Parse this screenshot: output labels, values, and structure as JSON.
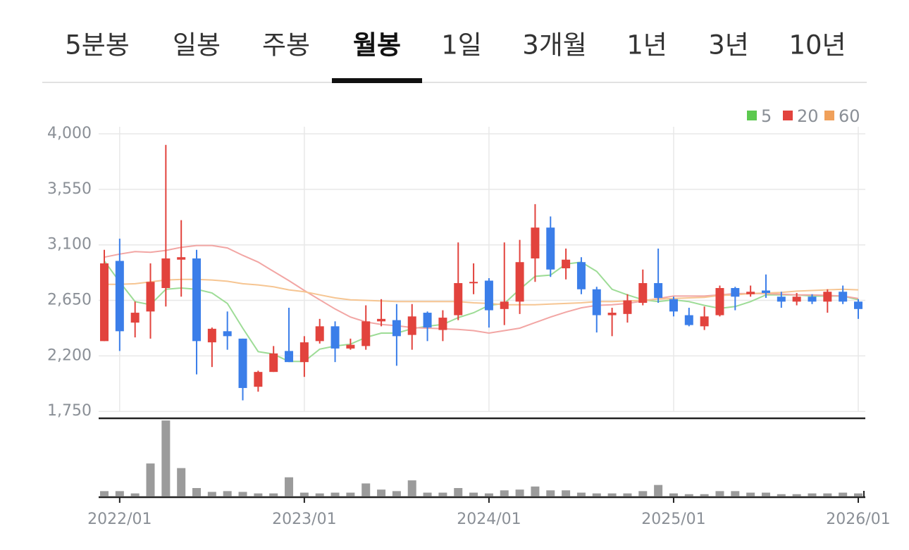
{
  "tabs": {
    "items": [
      "5분봉",
      "일봉",
      "주봉",
      "월봉",
      "1일",
      "3개월",
      "1년",
      "3년",
      "10년"
    ],
    "active": 3
  },
  "chart_data": {
    "type": "candlestick",
    "categories": [
      null,
      "2022/01",
      null,
      null,
      null,
      null,
      null,
      null,
      null,
      null,
      null,
      null,
      null,
      "2023/01",
      null,
      null,
      null,
      null,
      null,
      null,
      null,
      null,
      null,
      null,
      null,
      "2024/01",
      null,
      null,
      null,
      null,
      null,
      null,
      null,
      null,
      null,
      null,
      null,
      "2025/01",
      null,
      null,
      null,
      null,
      null,
      null,
      null,
      null,
      null,
      null,
      null,
      "2026/01"
    ],
    "open": [
      2320,
      2970,
      2470,
      2560,
      2750,
      2980,
      2990,
      2310,
      2400,
      2340,
      1950,
      2070,
      2240,
      2150,
      2320,
      2440,
      2260,
      2280,
      2480,
      2490,
      2370,
      2550,
      2410,
      2530,
      2790,
      2810,
      2580,
      2640,
      2990,
      3240,
      2910,
      2960,
      2740,
      2530,
      2540,
      2630,
      2790,
      2660,
      2530,
      2440,
      2530,
      2750,
      2700,
      2730,
      2680,
      2640,
      2680,
      2640,
      2720,
      2640
    ],
    "high": [
      3060,
      3150,
      2640,
      2950,
      3910,
      3300,
      3060,
      2430,
      2560,
      2340,
      2080,
      2280,
      2590,
      2360,
      2500,
      2480,
      2340,
      2610,
      2660,
      2620,
      2620,
      2560,
      2570,
      3120,
      2950,
      2830,
      3120,
      3140,
      3430,
      3330,
      3070,
      3000,
      2760,
      2590,
      2700,
      2900,
      3070,
      2680,
      2590,
      2600,
      2770,
      2760,
      2770,
      2860,
      2720,
      2710,
      2700,
      2740,
      2770,
      2660
    ],
    "low": [
      2320,
      2240,
      2350,
      2340,
      2600,
      2680,
      2050,
      2110,
      2250,
      1840,
      1910,
      2070,
      2150,
      2030,
      2300,
      2150,
      2250,
      2250,
      2440,
      2120,
      2250,
      2320,
      2320,
      2490,
      2700,
      2430,
      2450,
      2540,
      2800,
      2840,
      2820,
      2700,
      2390,
      2360,
      2470,
      2610,
      2630,
      2520,
      2440,
      2410,
      2520,
      2570,
      2680,
      2670,
      2590,
      2610,
      2620,
      2550,
      2620,
      2500
    ],
    "close": [
      2950,
      2400,
      2550,
      2800,
      2990,
      3000,
      2320,
      2420,
      2360,
      1940,
      2070,
      2220,
      2150,
      2310,
      2440,
      2260,
      2290,
      2480,
      2500,
      2360,
      2520,
      2430,
      2510,
      2790,
      2800,
      2570,
      2640,
      2960,
      3240,
      2900,
      2980,
      2740,
      2530,
      2550,
      2650,
      2790,
      2670,
      2560,
      2450,
      2520,
      2750,
      2680,
      2720,
      2710,
      2640,
      2680,
      2640,
      2720,
      2640,
      2580
    ],
    "volume": [
      7,
      7,
      4,
      43,
      99,
      37,
      11,
      6,
      7,
      6,
      4,
      4,
      25,
      5,
      4,
      5,
      5,
      17,
      9,
      7,
      21,
      5,
      5,
      11,
      5,
      4,
      8,
      9,
      13,
      8,
      8,
      5,
      4,
      4,
      4,
      7,
      15,
      4,
      3,
      3,
      7,
      7,
      5,
      5,
      3,
      3,
      4,
      4,
      5,
      4
    ],
    "up_color": "#e2433d",
    "down_color": "#3b7ee9",
    "volume_color": "#9b9b9b",
    "series": [
      {
        "name": "5",
        "color": "#5cc94f",
        "line_color": "#9ddc96",
        "values": [
          2970,
          2800,
          2640,
          2615,
          2740,
          2750,
          2740,
          2710,
          2625,
          2425,
          2235,
          2215,
          2155,
          2155,
          2255,
          2280,
          2295,
          2350,
          2385,
          2385,
          2420,
          2440,
          2455,
          2510,
          2550,
          2610,
          2625,
          2740,
          2845,
          2855,
          2945,
          2960,
          2885,
          2740,
          2695,
          2655,
          2640,
          2655,
          2640,
          2610,
          2585,
          2600,
          2640,
          2695,
          2695,
          2695,
          2685,
          2685,
          2685,
          2655
        ]
      },
      {
        "name": "20",
        "color": "#e2433d",
        "line_color": "#f2a6a4",
        "values": [
          3000,
          3025,
          3045,
          3040,
          3055,
          3080,
          3095,
          3095,
          3075,
          3015,
          2960,
          2885,
          2810,
          2730,
          2655,
          2580,
          2515,
          2475,
          2455,
          2445,
          2430,
          2425,
          2420,
          2415,
          2405,
          2385,
          2405,
          2425,
          2470,
          2515,
          2555,
          2590,
          2610,
          2615,
          2625,
          2645,
          2665,
          2685,
          2685,
          2685,
          2695,
          2705,
          2705,
          2705,
          2700,
          2695,
          2695,
          2690,
          2685,
          2665
        ]
      },
      {
        "name": "60",
        "color": "#f0a05a",
        "line_color": "#f6c592",
        "values": [
          2780,
          2780,
          2785,
          2800,
          2815,
          2820,
          2820,
          2815,
          2805,
          2785,
          2775,
          2760,
          2735,
          2720,
          2695,
          2670,
          2655,
          2650,
          2645,
          2640,
          2640,
          2640,
          2640,
          2640,
          2630,
          2625,
          2615,
          2615,
          2615,
          2620,
          2625,
          2630,
          2640,
          2640,
          2645,
          2650,
          2660,
          2665,
          2670,
          2675,
          2690,
          2695,
          2705,
          2710,
          2715,
          2725,
          2730,
          2735,
          2740,
          2735
        ]
      }
    ],
    "ylim": [
      1700,
      4000
    ],
    "yticks": [
      {
        "value": 1750,
        "label": "1,750"
      },
      {
        "value": 2200,
        "label": "2,200"
      },
      {
        "value": 2650,
        "label": "2,650"
      },
      {
        "value": 3100,
        "label": "3,100"
      },
      {
        "value": 3550,
        "label": "3,550"
      },
      {
        "value": 4000,
        "label": "4,000"
      }
    ],
    "volume_lim": [
      0,
      100
    ],
    "grid": true
  }
}
